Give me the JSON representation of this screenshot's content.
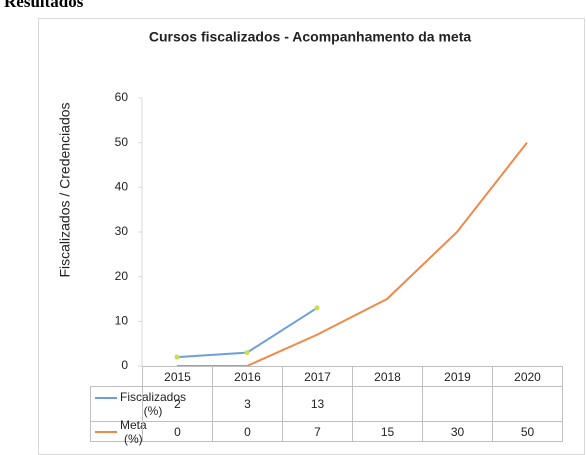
{
  "heading": "Resultados",
  "chart_data": {
    "type": "line",
    "title": "Cursos fiscalizados - Acompanhamento da meta",
    "y_label": "Fiscalizados / Credenciados",
    "categories": [
      "2015",
      "2016",
      "2017",
      "2018",
      "2019",
      "2020"
    ],
    "series": [
      {
        "name": "Fiscalizados (%)",
        "color": "#6f9fd8",
        "marker_color": "#c8e04a",
        "values": [
          2,
          3,
          13,
          null,
          null,
          null
        ]
      },
      {
        "name": "Meta (%)",
        "color": "#f08a4b",
        "values": [
          0,
          0,
          7,
          15,
          30,
          50
        ]
      }
    ],
    "ylim": [
      0,
      60
    ],
    "yticks": [
      0,
      10,
      20,
      30,
      40,
      50,
      60
    ],
    "grid": false
  }
}
